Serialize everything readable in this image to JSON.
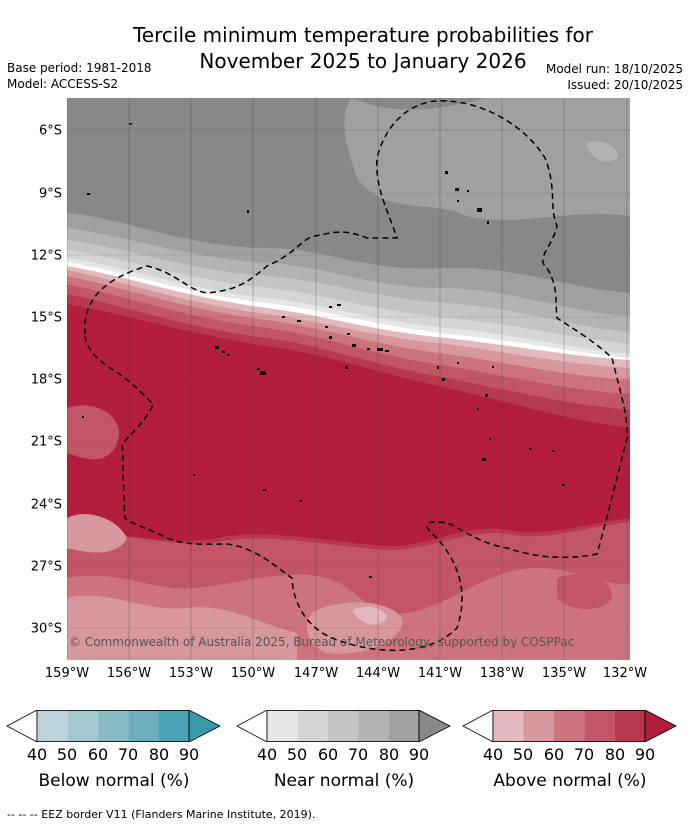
{
  "title_line1": "Tercile minimum temperature probabilities for",
  "title_line2": "November 2025 to January 2026",
  "base_period": "Base period: 1981-2018",
  "model": "Model: ACCESS-S2",
  "model_run": "Model run: 18/10/2025",
  "issued": "Issued: 20/10/2025",
  "copyright": "© Commonwealth of Australia 2025, Bureau of Meteorology, supported by COSPPac",
  "lat_labels": [
    "6°S",
    "9°S",
    "12°S",
    "15°S",
    "18°S",
    "21°S",
    "24°S",
    "27°S",
    "30°S"
  ],
  "lon_labels": [
    "159°W",
    "156°W",
    "153°W",
    "150°W",
    "147°W",
    "144°W",
    "141°W",
    "138°W",
    "135°W",
    "132°W"
  ],
  "colorbars": [
    {
      "label": "Below normal (%)",
      "ticks": [
        "40",
        "50",
        "60",
        "70",
        "80",
        "90"
      ],
      "colors": [
        "#ffffff",
        "#bcd3da",
        "#a5c8d0",
        "#8bbcc6",
        "#6dafbd",
        "#4aa2b3",
        "#3a9aac"
      ]
    },
    {
      "label": "Near normal (%)",
      "ticks": [
        "40",
        "50",
        "60",
        "70",
        "80",
        "90"
      ],
      "colors": [
        "#ffffff",
        "#e6e6e6",
        "#d5d5d5",
        "#c4c4c4",
        "#b3b3b3",
        "#a0a0a0",
        "#888888"
      ]
    },
    {
      "label": "Above normal (%)",
      "ticks": [
        "40",
        "50",
        "60",
        "70",
        "80",
        "90"
      ],
      "colors": [
        "#ffffff",
        "#e3b8bf",
        "#d6979e",
        "#cc737d",
        "#c25666",
        "#b7394e",
        "#b31e3c"
      ]
    }
  ],
  "footnote": "-- -- -- EEZ border V11 (Flanders Marine Institute, 2019)."
}
